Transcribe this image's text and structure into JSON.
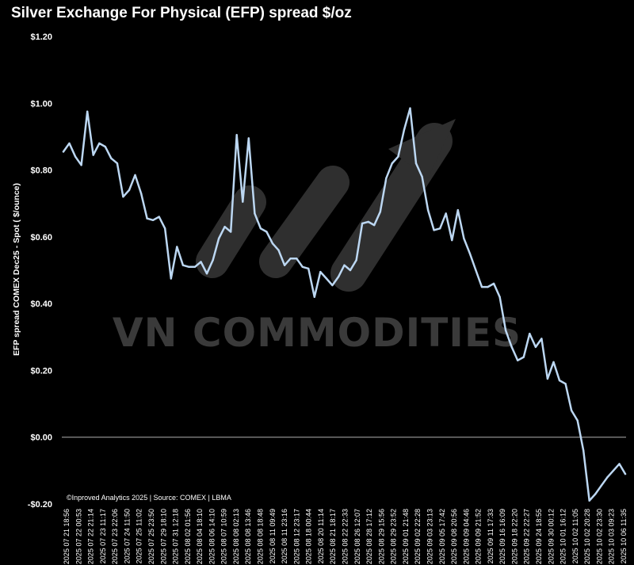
{
  "chart_data": {
    "type": "line",
    "title": "Silver Exchange For Physical (EFP) spread $/oz",
    "ylabel": "EFP spread  COMEX Dec25 - Spot ( $/ounce)",
    "xlabel": "",
    "ylim": [
      -0.2,
      1.2
    ],
    "yticks": [
      {
        "value": 1.2,
        "label": "$1.20"
      },
      {
        "value": 1.0,
        "label": "$1.00"
      },
      {
        "value": 0.8,
        "label": "$0.80"
      },
      {
        "value": 0.6,
        "label": "$0.60"
      },
      {
        "value": 0.4,
        "label": "$0.40"
      },
      {
        "value": 0.2,
        "label": "$0.20"
      },
      {
        "value": 0.0,
        "label": "$0.00"
      },
      {
        "value": -0.2,
        "label": "-$0.20"
      }
    ],
    "x_tick_labels": [
      "2025 07 21 18:56",
      "2025 07 22 00:53",
      "2025 07 22 21:14",
      "2025 07 23 11:17",
      "2025 07 23 22:06",
      "2025 07 24 11:50",
      "2025 07 25 11:02",
      "2025 07 25 23:50",
      "2025 07 29 18:10",
      "2025 07 31 12:18",
      "2025 08 02 01:56",
      "2025 08 04 18:10",
      "2025 08 06 14:10",
      "2025 08 07 10:59",
      "2025 08 08 02:13",
      "2025 08 08 13:46",
      "2025 08 08 18:48",
      "2025 08 11 09:49",
      "2025 08 11 23:16",
      "2025 08 12 23:17",
      "2025 08 18 00:44",
      "2025 08 20 11:14",
      "2025 08 21 18:17",
      "2025 08 22 22:33",
      "2025 08 26 12:07",
      "2025 08 28 17:12",
      "2025 08 29 15:56",
      "2025 08 29 23:52",
      "2025 09 01 21:48",
      "2025 09 02 22:28",
      "2025 09 03 23:13",
      "2025 09 05 17:42",
      "2025 09 08 20:56",
      "2025 09 09 04:46",
      "2025 09 09 21:52",
      "2025 09 11 17:33",
      "2025 09 16 16:09",
      "2025 09 18 22:20",
      "2025 09 22 22:27",
      "2025 09 24 18:55",
      "2025 09 30 00:12",
      "2025 10 01 16:12",
      "2025 10 02 11:05",
      "2025 10 02 20:28",
      "2025 10 02 23:30",
      "2025 10 03 09:23",
      "2025 10 06 11:35"
    ],
    "series": [
      {
        "values": [
          0.855,
          0.88,
          0.84,
          0.815,
          0.975,
          0.845,
          0.88,
          0.87,
          0.835,
          0.82,
          0.72,
          0.74,
          0.785,
          0.73,
          0.655,
          0.65,
          0.66,
          0.625,
          0.475,
          0.57,
          0.515,
          0.51,
          0.51,
          0.525,
          0.49,
          0.53,
          0.595,
          0.63,
          0.615,
          0.905,
          0.705,
          0.895,
          0.67,
          0.625,
          0.615,
          0.58,
          0.56,
          0.515,
          0.535,
          0.535,
          0.51,
          0.505,
          0.42,
          0.495,
          0.475,
          0.455,
          0.48,
          0.515,
          0.5,
          0.53,
          0.64,
          0.645,
          0.635,
          0.675,
          0.775,
          0.82,
          0.84,
          0.92,
          0.985,
          0.82,
          0.78,
          0.68,
          0.62,
          0.625,
          0.67,
          0.59,
          0.68,
          0.595,
          0.55,
          0.5,
          0.45,
          0.45,
          0.46,
          0.42,
          0.32,
          0.27,
          0.23,
          0.24,
          0.31,
          0.27,
          0.295,
          0.175,
          0.225,
          0.17,
          0.16,
          0.08,
          0.05,
          -0.04,
          -0.19,
          -0.17,
          -0.145,
          -0.12,
          -0.1,
          -0.08,
          -0.11
        ]
      }
    ],
    "zero_line": true,
    "grid": false,
    "legend": "none",
    "line_color": "#bcd7f2",
    "background_color": "#000000",
    "source_text": "©Inproved Analytics 2025 | Source: COMEX | LBMA",
    "watermark_text": "VN COMMODITIES"
  }
}
